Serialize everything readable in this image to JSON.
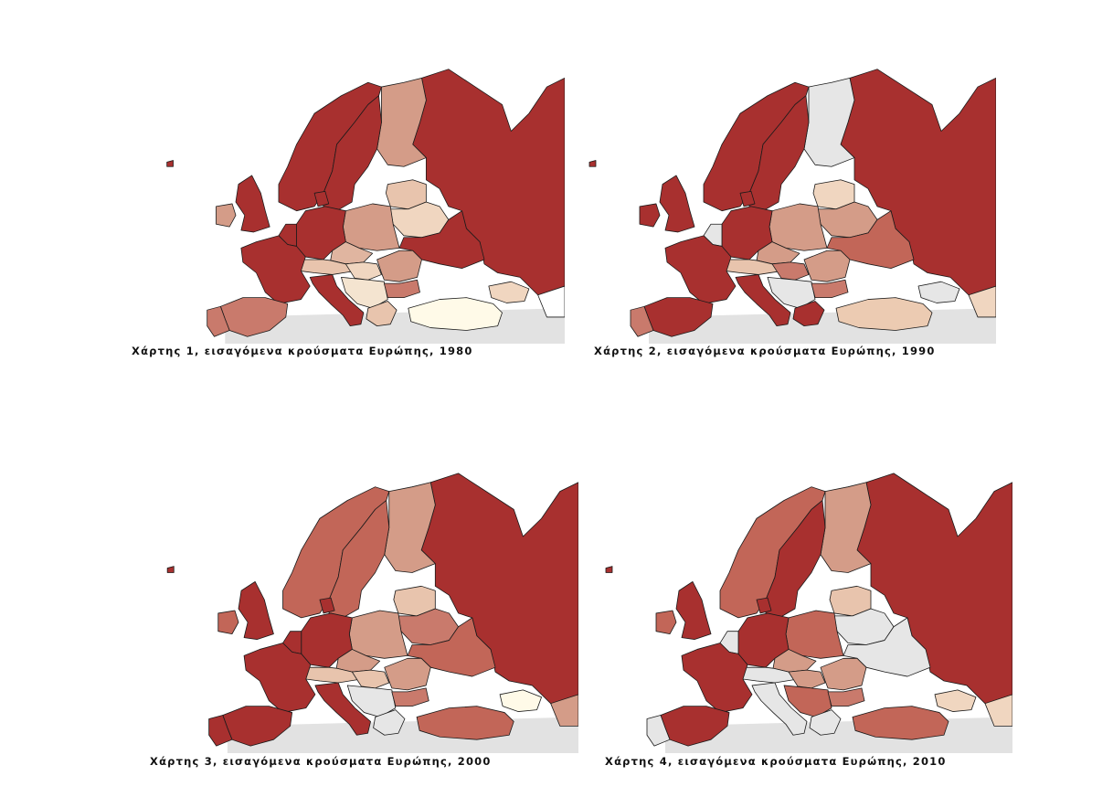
{
  "maps": [
    {
      "caption": "Χάρτης 1, εισαγόμενα κρούσματα Ευρώπης, 1980",
      "fills": {
        "russia": "#a8302f",
        "norway": "#a8302f",
        "sweden": "#a8302f",
        "finland": "#d49c88",
        "uk": "#a8302f",
        "ireland": "#d49c88",
        "iceland_dot": "#a8302f",
        "france": "#a8302f",
        "spain": "#c97a6c",
        "portugal": "#c97a6c",
        "germany": "#a8302f",
        "benelux": "#a8302f",
        "denmark": "#a8302f",
        "poland": "#d49c88",
        "baltics": "#e8c4ad",
        "belarus": "#f0d6c0",
        "ukraine": "#a8302f",
        "czech": "#e0b5a0",
        "austria_swiss": "#e8c4ad",
        "hungary": "#f0d6c0",
        "romania": "#d49c88",
        "balkans": "#f4e4d0",
        "italy": "#a8302f",
        "bulgaria": "#c97a6c",
        "greece": "#e8c4ad",
        "turkey": "#fffae8",
        "caucasus": "#f0d6c0",
        "kazakh_edge": "#ffffff"
      }
    },
    {
      "caption": "Χάρτης 2, εισαγόμενα κρούσματα Ευρώπης, 1990",
      "fills": {
        "russia": "#a8302f",
        "norway": "#a8302f",
        "sweden": "#a8302f",
        "finland": "#e6e6e6",
        "uk": "#a8302f",
        "ireland": "#a8302f",
        "iceland_dot": "#a8302f",
        "france": "#a8302f",
        "spain": "#a8302f",
        "portugal": "#c97a6c",
        "germany": "#a8302f",
        "benelux": "#e6e6e6",
        "denmark": "#a8302f",
        "poland": "#d49c88",
        "baltics": "#f0d6c0",
        "belarus": "#d49c88",
        "ukraine": "#c26658",
        "czech": "#d49c88",
        "austria_swiss": "#e8c4ad",
        "hungary": "#c97a6c",
        "romania": "#d49c88",
        "balkans": "#e6e6e6",
        "italy": "#a8302f",
        "bulgaria": "#c97a6c",
        "greece": "#a8302f",
        "turkey": "#eccbb2",
        "caucasus": "#e6e6e6",
        "kazakh_edge": "#f0d6c0"
      }
    },
    {
      "caption": "Χάρτης 3, εισαγόμενα κρούσματα Ευρώπης, 2000",
      "fills": {
        "russia": "#a8302f",
        "norway": "#c26658",
        "sweden": "#c26658",
        "finland": "#d49c88",
        "uk": "#a8302f",
        "ireland": "#c26658",
        "iceland_dot": "#a8302f",
        "france": "#a8302f",
        "spain": "#a8302f",
        "portugal": "#a8302f",
        "germany": "#a8302f",
        "benelux": "#a8302f",
        "denmark": "#a8302f",
        "poland": "#d49c88",
        "baltics": "#e8c4ad",
        "belarus": "#c97a6c",
        "ukraine": "#c26658",
        "czech": "#d49c88",
        "austria_swiss": "#e8c4ad",
        "hungary": "#e8c4ad",
        "romania": "#d49c88",
        "balkans": "#e6e6e6",
        "italy": "#a8302f",
        "bulgaria": "#c97a6c",
        "greece": "#e6e6e6",
        "turkey": "#c26658",
        "caucasus": "#fffae8",
        "kazakh_edge": "#d49c88"
      }
    },
    {
      "caption": "Χάρτης 4, εισαγόμενα κρούσματα Ευρώπης, 2010",
      "fills": {
        "russia": "#a8302f",
        "norway": "#c26658",
        "sweden": "#a8302f",
        "finland": "#d49c88",
        "uk": "#a8302f",
        "ireland": "#c26658",
        "iceland_dot": "#a8302f",
        "france": "#a8302f",
        "spain": "#a8302f",
        "portugal": "#e6e6e6",
        "germany": "#a8302f",
        "benelux": "#e6e6e6",
        "denmark": "#a8302f",
        "poland": "#c26658",
        "baltics": "#e8c4ad",
        "belarus": "#e6e6e6",
        "ukraine": "#e6e6e6",
        "czech": "#d49c88",
        "austria_swiss": "#e6e6e6",
        "hungary": "#d49c88",
        "romania": "#d49c88",
        "balkans": "#c26658",
        "italy": "#e6e6e6",
        "bulgaria": "#c97a6c",
        "greece": "#e6e6e6",
        "turkey": "#c26658",
        "caucasus": "#f0d6c0",
        "kazakh_edge": "#f0d6c0"
      }
    }
  ],
  "colors": {
    "border": "#1a1a1a",
    "sea_gray": "#e2e2e2",
    "background": "#ffffff"
  }
}
